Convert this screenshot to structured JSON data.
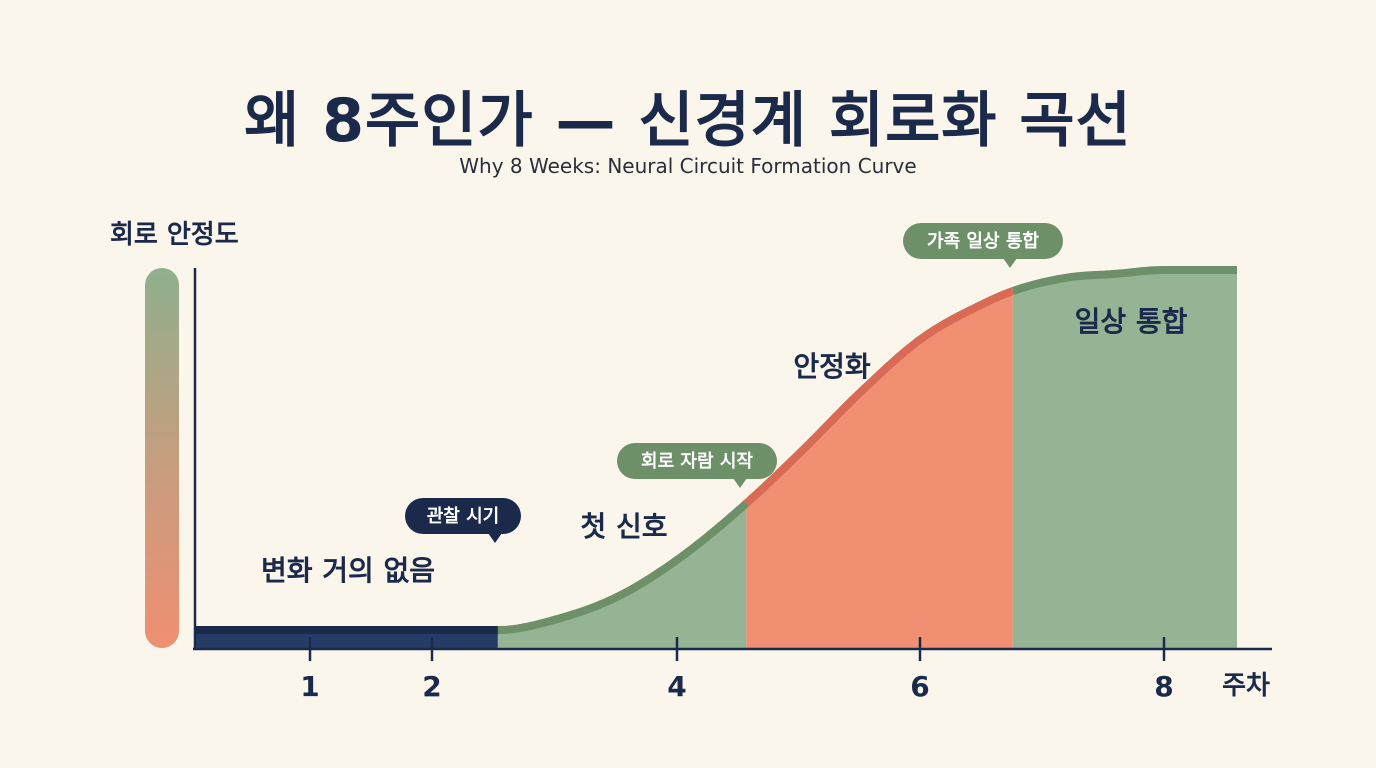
{
  "title": "왜 8주인가 — 신경계 회로화 곡선",
  "subtitle": "Why 8 Weeks: Neural Circuit Formation Curve",
  "chart_data": {
    "type": "area",
    "ylabel": "회로 안정도",
    "xunit": "주차",
    "x_ticks": [
      1,
      2,
      4,
      6,
      8
    ],
    "xlim": [
      0,
      8.6
    ],
    "ylim": [
      0,
      100
    ],
    "grid": false,
    "legend": "none",
    "curve": {
      "x": [
        0,
        2.5,
        3.0,
        3.5,
        4.0,
        4.5,
        5.0,
        5.5,
        6.0,
        6.5,
        6.8,
        7.2,
        7.6,
        8.0,
        8.6
      ],
      "y": [
        5,
        5,
        8,
        14,
        24,
        37,
        52,
        68,
        82,
        91,
        95,
        98,
        99,
        100,
        100
      ]
    },
    "phases": [
      {
        "label": "변화 거의 없음",
        "x_start": 0,
        "x_end": 2.5,
        "color": "#253c66"
      },
      {
        "label": "첫 신호",
        "x_start": 2.5,
        "x_end": 4.55,
        "color": "#94b493"
      },
      {
        "label": "안정화",
        "x_start": 4.55,
        "x_end": 6.75,
        "color": "#f08f72"
      },
      {
        "label": "일상 통합",
        "x_start": 6.75,
        "x_end": 8.6,
        "color": "#94b493"
      }
    ],
    "annotations": [
      {
        "text": "관찰 시기",
        "style": "dark"
      },
      {
        "text": "회로 자람 시작",
        "style": "green"
      },
      {
        "text": "가족 일상 통합",
        "style": "green"
      }
    ]
  },
  "colors": {
    "background": "#fbf6ec",
    "navy": "#1b2a4a",
    "green": "#94b493",
    "green_line": "#6e9069",
    "coral": "#f08f72",
    "coral_line": "#d96b56",
    "dark_fill": "#253c66"
  }
}
